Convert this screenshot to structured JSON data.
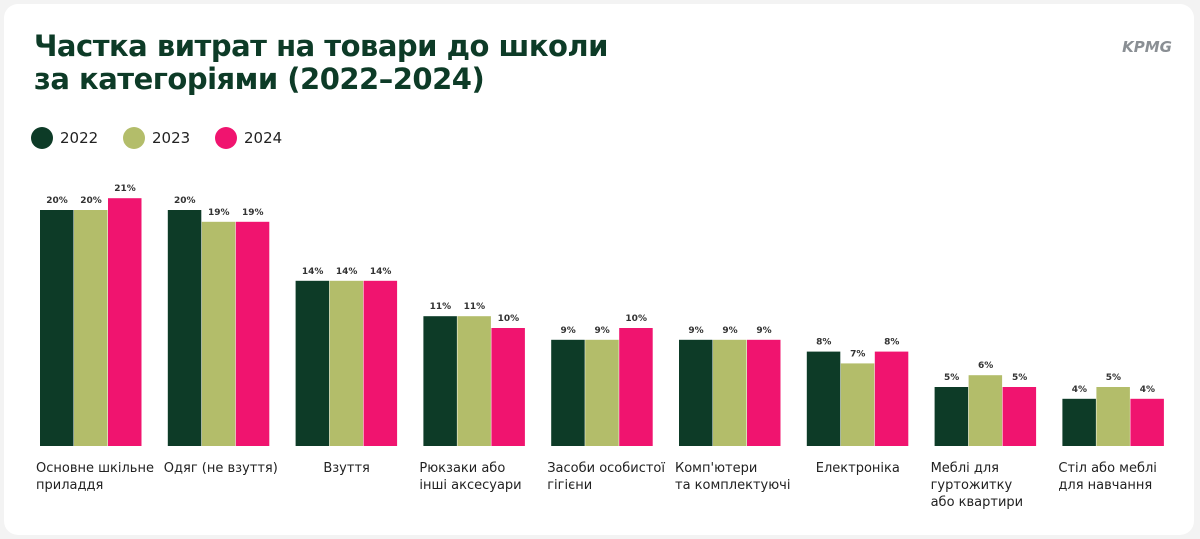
{
  "chart_data": {
    "type": "bar",
    "title": "Частка витрат на товари до школи\nза категоріями (2022–2024)",
    "logo": "KPMG",
    "categories": [
      "Основне шкільне\nприладдя",
      "Одяг (не взуття)",
      "Взуття",
      "Рюкзаки або\nінші аксесуари",
      "Засоби особистої\nгігієни",
      "Комп'ютери\nта комплектуючі",
      "Електроніка",
      "Меблі для\nгуртожитку\nабо квартири",
      "Стіл або меблі\nдля навчання"
    ],
    "series": [
      {
        "name": "2022",
        "color": "#0d3b27",
        "values": [
          20,
          20,
          14,
          11,
          9,
          9,
          8,
          5,
          4
        ],
        "value_labels": [
          "20%",
          "20%",
          "14%",
          "11%",
          "9%",
          "9%",
          "8%",
          "5%",
          "4%"
        ]
      },
      {
        "name": "2023",
        "color": "#b3bd6a",
        "values": [
          20,
          19,
          14,
          11,
          9,
          9,
          7,
          6,
          5
        ],
        "value_labels": [
          "20%",
          "19%",
          "14%",
          "11%",
          "9%",
          "9%",
          "7%",
          "6%",
          "5%"
        ]
      },
      {
        "name": "2024",
        "color": "#f0146f",
        "values": [
          21,
          19,
          14,
          10,
          10,
          9,
          8,
          5,
          4
        ],
        "value_labels": [
          "21%",
          "19%",
          "14%",
          "10%",
          "10%",
          "9%",
          "8%",
          "5%",
          "4%"
        ]
      }
    ]
  }
}
